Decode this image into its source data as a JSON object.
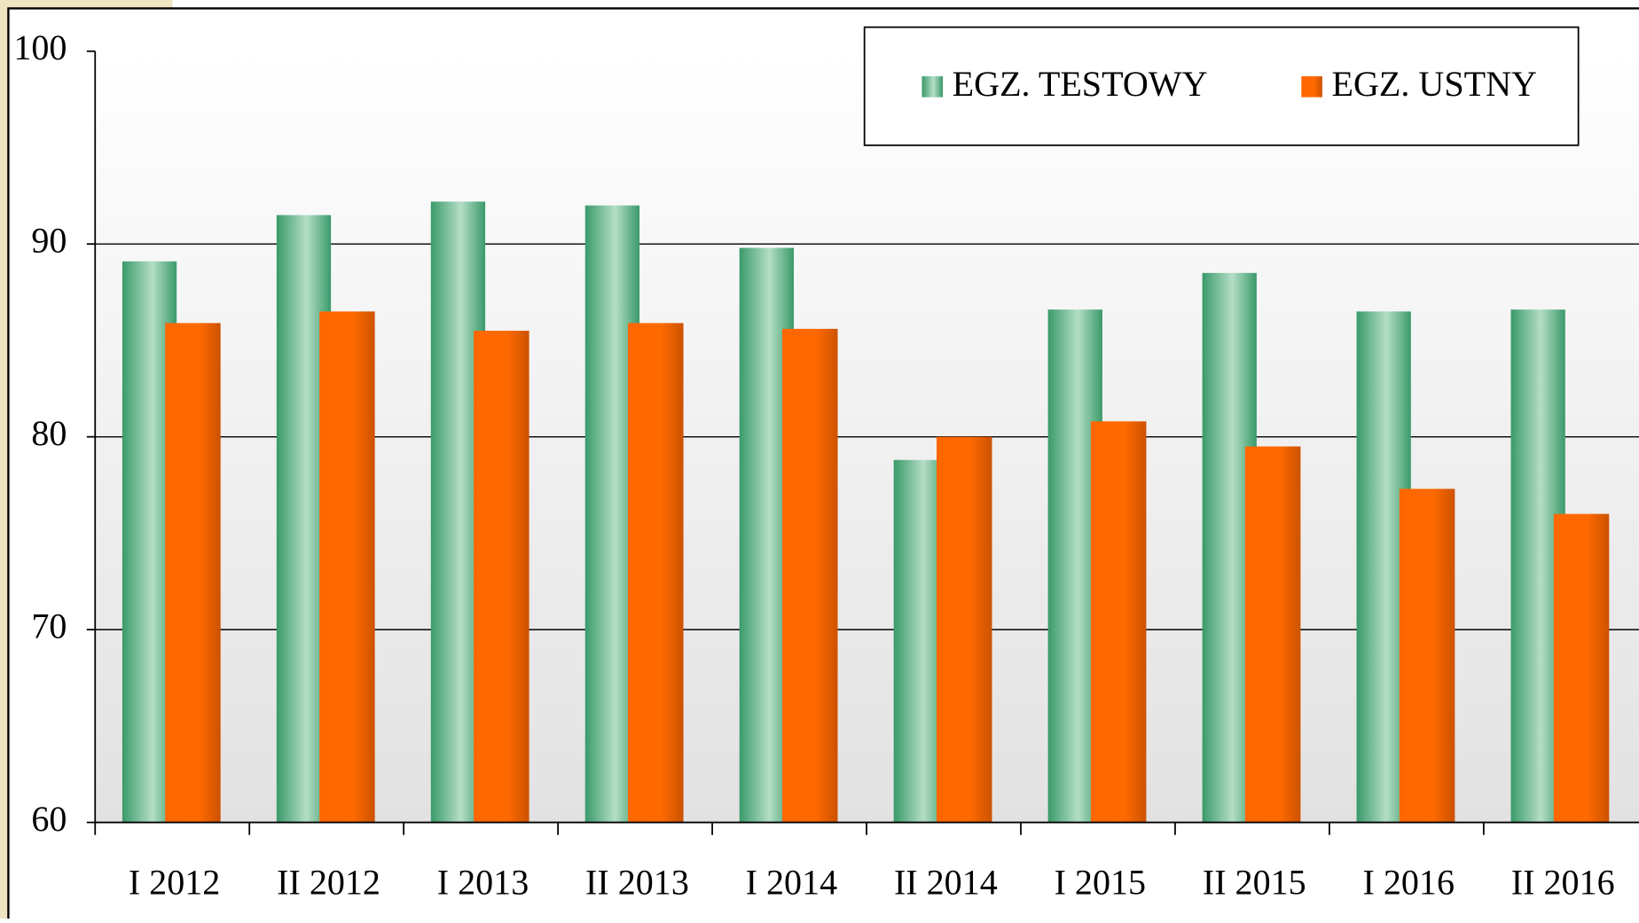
{
  "chart_data": {
    "type": "bar",
    "categories": [
      "I 2012",
      "II 2012",
      "I 2013",
      "II 2013",
      "I 2014",
      "II 2014",
      "I 2015",
      "II 2015",
      "I 2016",
      "II 2016"
    ],
    "series": [
      {
        "name": "EGZ. TESTOWY",
        "color": "#3a9a6a",
        "values": [
          89.1,
          91.5,
          92.2,
          92.0,
          89.8,
          78.8,
          86.6,
          88.5,
          86.5,
          86.6
        ]
      },
      {
        "name": "EGZ. USTNY",
        "color": "#ff6600",
        "values": [
          85.9,
          86.5,
          85.5,
          85.9,
          85.6,
          80.0,
          80.8,
          79.5,
          77.3,
          76.0
        ]
      }
    ],
    "ylim": [
      60,
      100
    ],
    "yticks": [
      60,
      70,
      80,
      90,
      100
    ],
    "grid": true,
    "legend": "top-right"
  }
}
